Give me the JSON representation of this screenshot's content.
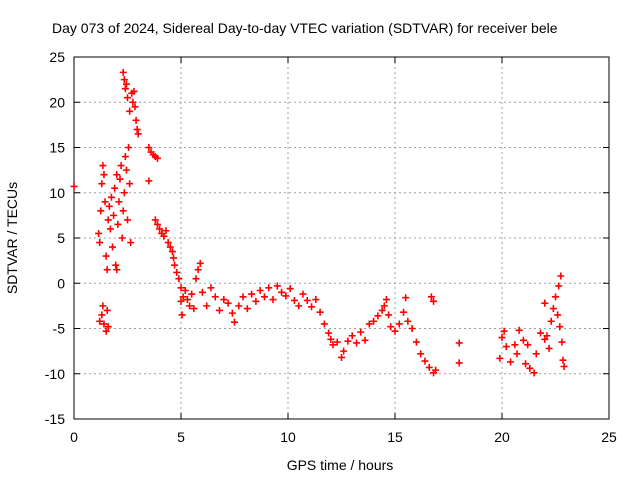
{
  "chart_data": {
    "type": "scatter",
    "title": "Day 073 of 2024, Sidereal Day-to-day VTEC variation (SDTVAR) for receiver bele",
    "xlabel": "GPS time / hours",
    "ylabel": "SDTVAR / TECUs",
    "xlim": [
      0,
      25
    ],
    "ylim": [
      -15,
      25
    ],
    "xticks": [
      0,
      5,
      10,
      15,
      20,
      25
    ],
    "yticks": [
      -15,
      -10,
      -5,
      0,
      5,
      10,
      15,
      20,
      25
    ],
    "grid": true,
    "marker": "plus",
    "color": "#ff0000",
    "series": [
      {
        "name": "SDTVAR",
        "points": [
          [
            0.0,
            10.7
          ],
          [
            1.15,
            5.5
          ],
          [
            1.2,
            4.5
          ],
          [
            1.25,
            8
          ],
          [
            1.3,
            11
          ],
          [
            1.35,
            13
          ],
          [
            1.4,
            12
          ],
          [
            1.45,
            9
          ],
          [
            1.5,
            3
          ],
          [
            1.55,
            1.5
          ],
          [
            1.2,
            -4.2
          ],
          [
            1.3,
            -3.5
          ],
          [
            1.35,
            -2.5
          ],
          [
            1.4,
            -4.5
          ],
          [
            1.5,
            -5.3
          ],
          [
            1.55,
            -3
          ],
          [
            1.6,
            -4.8
          ],
          [
            1.6,
            7
          ],
          [
            1.65,
            8.5
          ],
          [
            1.7,
            6
          ],
          [
            1.75,
            9.5
          ],
          [
            1.8,
            4
          ],
          [
            1.85,
            7.5
          ],
          [
            1.9,
            10.5
          ],
          [
            1.95,
            2
          ],
          [
            2.0,
            1.5
          ],
          [
            2.0,
            12
          ],
          [
            2.05,
            6.5
          ],
          [
            2.1,
            9
          ],
          [
            2.15,
            11.5
          ],
          [
            2.2,
            13
          ],
          [
            2.25,
            5
          ],
          [
            2.3,
            8
          ],
          [
            2.35,
            10
          ],
          [
            2.4,
            14
          ],
          [
            2.45,
            12.5
          ],
          [
            2.5,
            7
          ],
          [
            2.55,
            15
          ],
          [
            2.6,
            11
          ],
          [
            2.65,
            4.5
          ],
          [
            2.3,
            23.3
          ],
          [
            2.35,
            22.5
          ],
          [
            2.4,
            21.5
          ],
          [
            2.45,
            22
          ],
          [
            2.5,
            20.5
          ],
          [
            2.6,
            19
          ],
          [
            2.7,
            21
          ],
          [
            2.75,
            20
          ],
          [
            2.8,
            21.2
          ],
          [
            2.85,
            19.5
          ],
          [
            2.9,
            18
          ],
          [
            2.95,
            17
          ],
          [
            3.0,
            16.5
          ],
          [
            3.5,
            15
          ],
          [
            3.6,
            14.5
          ],
          [
            3.7,
            14.2
          ],
          [
            3.8,
            14
          ],
          [
            3.9,
            13.8
          ],
          [
            3.5,
            11.3
          ],
          [
            3.8,
            7
          ],
          [
            3.9,
            6.5
          ],
          [
            4.0,
            6
          ],
          [
            4.1,
            5.5
          ],
          [
            4.2,
            5.2
          ],
          [
            4.3,
            5.8
          ],
          [
            4.4,
            4.5
          ],
          [
            4.5,
            4
          ],
          [
            4.6,
            3.5
          ],
          [
            4.65,
            2.8
          ],
          [
            4.7,
            2
          ],
          [
            4.8,
            1.2
          ],
          [
            4.9,
            0.5
          ],
          [
            5.0,
            -0.5
          ],
          [
            5.0,
            -2
          ],
          [
            5.05,
            -3.5
          ],
          [
            5.1,
            -1.5
          ],
          [
            5.2,
            -0.8
          ],
          [
            5.3,
            -1.8
          ],
          [
            5.4,
            -2.5
          ],
          [
            5.5,
            -1.2
          ],
          [
            5.6,
            -2.8
          ],
          [
            5.7,
            0.5
          ],
          [
            5.8,
            1.5
          ],
          [
            5.9,
            2.2
          ],
          [
            6.0,
            -1
          ],
          [
            6.2,
            -2.5
          ],
          [
            6.4,
            -0.5
          ],
          [
            6.6,
            -1.5
          ],
          [
            6.8,
            -3
          ],
          [
            7.0,
            -1.8
          ],
          [
            7.2,
            -2.2
          ],
          [
            7.4,
            -3.3
          ],
          [
            7.5,
            -4.3
          ],
          [
            7.7,
            -2.5
          ],
          [
            7.9,
            -1.5
          ],
          [
            8.1,
            -2.8
          ],
          [
            8.3,
            -1.2
          ],
          [
            8.5,
            -2
          ],
          [
            8.7,
            -0.8
          ],
          [
            8.9,
            -1.5
          ],
          [
            9.1,
            -0.5
          ],
          [
            9.3,
            -1.8
          ],
          [
            9.5,
            -0.3
          ],
          [
            9.7,
            -1
          ],
          [
            9.9,
            -1.4
          ],
          [
            10.1,
            -0.6
          ],
          [
            10.3,
            -1.9
          ],
          [
            10.5,
            -2.5
          ],
          [
            10.7,
            -1.2
          ],
          [
            10.9,
            -1.9
          ],
          [
            11.1,
            -2.6
          ],
          [
            11.3,
            -1.8
          ],
          [
            11.5,
            -3.2
          ],
          [
            11.7,
            -4.5
          ],
          [
            11.9,
            -5.5
          ],
          [
            12.0,
            -6.2
          ],
          [
            12.1,
            -6.8
          ],
          [
            12.3,
            -6.5
          ],
          [
            12.5,
            -8.2
          ],
          [
            12.6,
            -7.5
          ],
          [
            12.8,
            -6.4
          ],
          [
            13.0,
            -5.8
          ],
          [
            13.2,
            -6.6
          ],
          [
            13.4,
            -5.4
          ],
          [
            13.6,
            -6.3
          ],
          [
            13.8,
            -4.5
          ],
          [
            14.0,
            -4.2
          ],
          [
            14.2,
            -3.6
          ],
          [
            14.4,
            -3
          ],
          [
            14.5,
            -2.5
          ],
          [
            14.6,
            -1.8
          ],
          [
            14.7,
            -3.5
          ],
          [
            14.8,
            -4.8
          ],
          [
            15.0,
            -5.3
          ],
          [
            15.2,
            -4.5
          ],
          [
            15.4,
            -3.2
          ],
          [
            15.5,
            -1.6
          ],
          [
            15.6,
            -4.2
          ],
          [
            15.8,
            -5
          ],
          [
            16.0,
            -6.5
          ],
          [
            16.2,
            -7.8
          ],
          [
            16.4,
            -8.6
          ],
          [
            16.6,
            -9.3
          ],
          [
            16.8,
            -9.9
          ],
          [
            16.9,
            -9.6
          ],
          [
            16.7,
            -1.5
          ],
          [
            16.8,
            -2
          ],
          [
            18.0,
            -6.6
          ],
          [
            18.0,
            -8.8
          ],
          [
            19.9,
            -8.3
          ],
          [
            20.0,
            -6
          ],
          [
            20.1,
            -5.3
          ],
          [
            20.2,
            -7
          ],
          [
            20.4,
            -8.7
          ],
          [
            20.6,
            -6.8
          ],
          [
            20.7,
            -7.8
          ],
          [
            20.8,
            -5.2
          ],
          [
            21.0,
            -6.3
          ],
          [
            21.1,
            -8.9
          ],
          [
            21.2,
            -6.8
          ],
          [
            21.3,
            -9.4
          ],
          [
            21.5,
            -9.9
          ],
          [
            21.6,
            -7.8
          ],
          [
            21.8,
            -5.5
          ],
          [
            22.0,
            -6.2
          ],
          [
            22.1,
            -5.8
          ],
          [
            22.2,
            -7.2
          ],
          [
            22.3,
            -4.2
          ],
          [
            22.0,
            -2.2
          ],
          [
            22.4,
            -2.8
          ],
          [
            22.5,
            -1.5
          ],
          [
            22.6,
            -3.5
          ],
          [
            22.65,
            -0.3
          ],
          [
            22.7,
            -4.8
          ],
          [
            22.75,
            0.8
          ],
          [
            22.8,
            -6.5
          ],
          [
            22.85,
            -8.5
          ],
          [
            22.9,
            -9.2
          ]
        ]
      }
    ]
  }
}
